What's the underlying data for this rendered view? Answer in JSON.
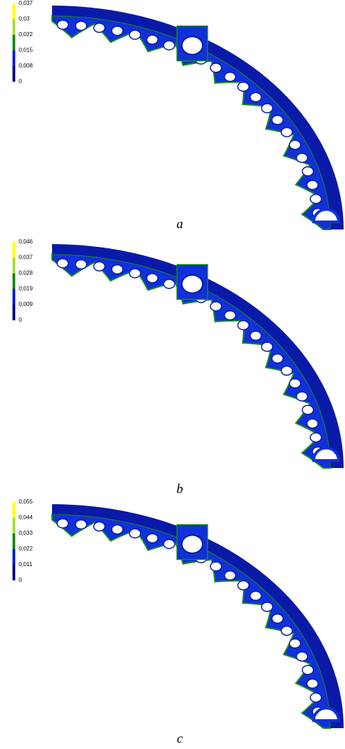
{
  "panels": [
    {
      "legend": [
        "0,037",
        "0,03",
        "0,022",
        "0,015",
        "0,008",
        "0"
      ],
      "caption": "a"
    },
    {
      "legend": [
        "0,046",
        "0,037",
        "0,028",
        "0,019",
        "0,009",
        "0"
      ],
      "caption": "b"
    },
    {
      "legend": [
        "0,055",
        "0,044",
        "0,033",
        "0,022",
        "0,011",
        "0"
      ],
      "caption": "c"
    }
  ]
}
